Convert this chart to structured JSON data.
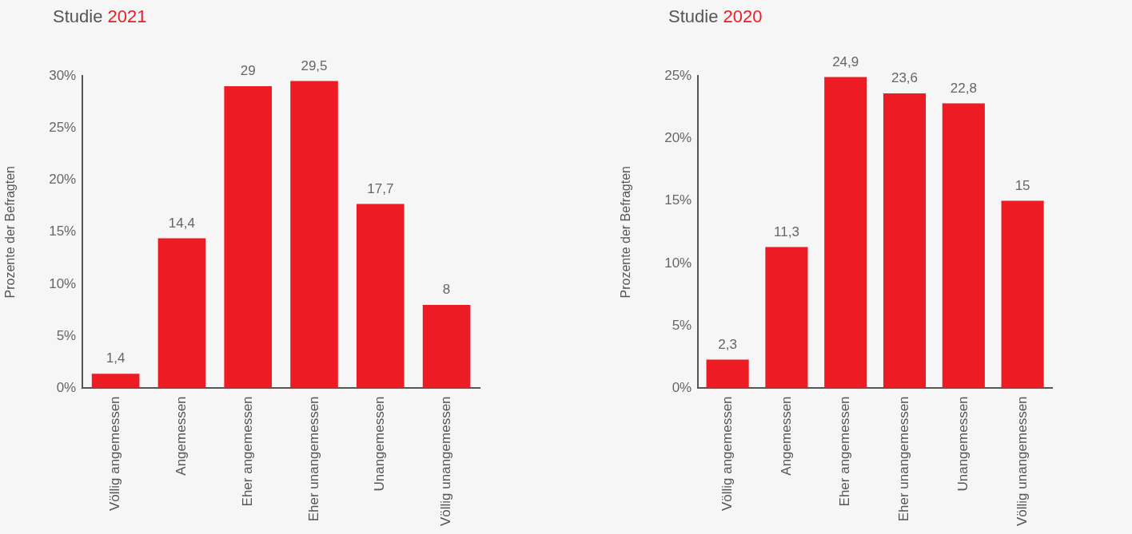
{
  "chart_data": [
    {
      "type": "bar",
      "title": "Studie 2021",
      "ylabel": "Prozente der Befragten",
      "categories": [
        "Völlig angemessen",
        "Angemessen",
        "Eher angemessen",
        "Eher unangemessen",
        "Unangemessen",
        "Völlig unangemessen"
      ],
      "values": [
        1.4,
        14.4,
        29,
        29.5,
        17.7,
        8
      ],
      "value_labels": [
        "1,4",
        "14,4",
        "29",
        "29,5",
        "17,7",
        "8"
      ],
      "color": "#ed1c24",
      "ylim": [
        0,
        30
      ],
      "yticks": [
        {
          "value": 0,
          "label": "0%"
        },
        {
          "value": 5,
          "label": "5%"
        },
        {
          "value": 10,
          "label": "10%"
        },
        {
          "value": 15,
          "label": "15%"
        },
        {
          "value": 20,
          "label": "20%"
        },
        {
          "value": 25,
          "label": "25%"
        },
        {
          "value": 30,
          "label": "30%"
        }
      ],
      "grid": false,
      "legend": false
    },
    {
      "type": "bar",
      "title": "Studie 2020",
      "ylabel": "Prozente der Befragten",
      "categories": [
        "Völlig angemessen",
        "Angemessen",
        "Eher angemessen",
        "Eher unangemessen",
        "Unangemessen",
        "Völlig unangemessen"
      ],
      "values": [
        2.3,
        11.3,
        24.9,
        23.6,
        22.8,
        15
      ],
      "value_labels": [
        "2,3",
        "11,3",
        "24,9",
        "23,6",
        "22,8",
        "15"
      ],
      "color": "#ed1c24",
      "ylim": [
        0,
        25
      ],
      "yticks": [
        {
          "value": 0,
          "label": "0%"
        },
        {
          "value": 5,
          "label": "5%"
        },
        {
          "value": 10,
          "label": "10%"
        },
        {
          "value": 15,
          "label": "15%"
        },
        {
          "value": 20,
          "label": "20%"
        },
        {
          "value": 25,
          "label": "25%"
        }
      ],
      "grid": false,
      "legend": false
    }
  ]
}
